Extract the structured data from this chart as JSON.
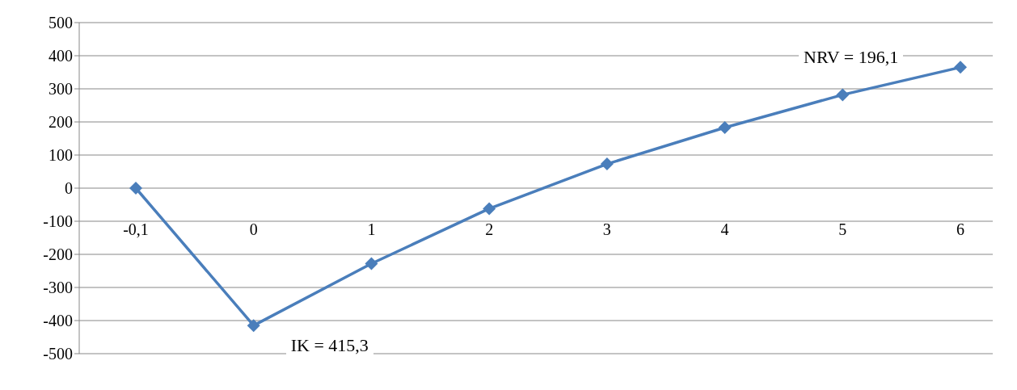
{
  "chart_data": {
    "type": "line",
    "categories": [
      "-0,1",
      "0",
      "1",
      "2",
      "3",
      "4",
      "5",
      "6"
    ],
    "series": [
      {
        "color": "#4a7ebb",
        "values": [
          0,
          -415,
          -228,
          -62,
          73,
          183,
          282,
          365
        ]
      }
    ],
    "ylim": [
      -500,
      500
    ],
    "yticks": [
      -500,
      -400,
      -300,
      -200,
      -100,
      0,
      100,
      200,
      300,
      400,
      500
    ],
    "grid": "y",
    "marker": "diamond",
    "legend": false,
    "annotations": [
      "IK = 415,3",
      "NRV = 196,1"
    ]
  }
}
